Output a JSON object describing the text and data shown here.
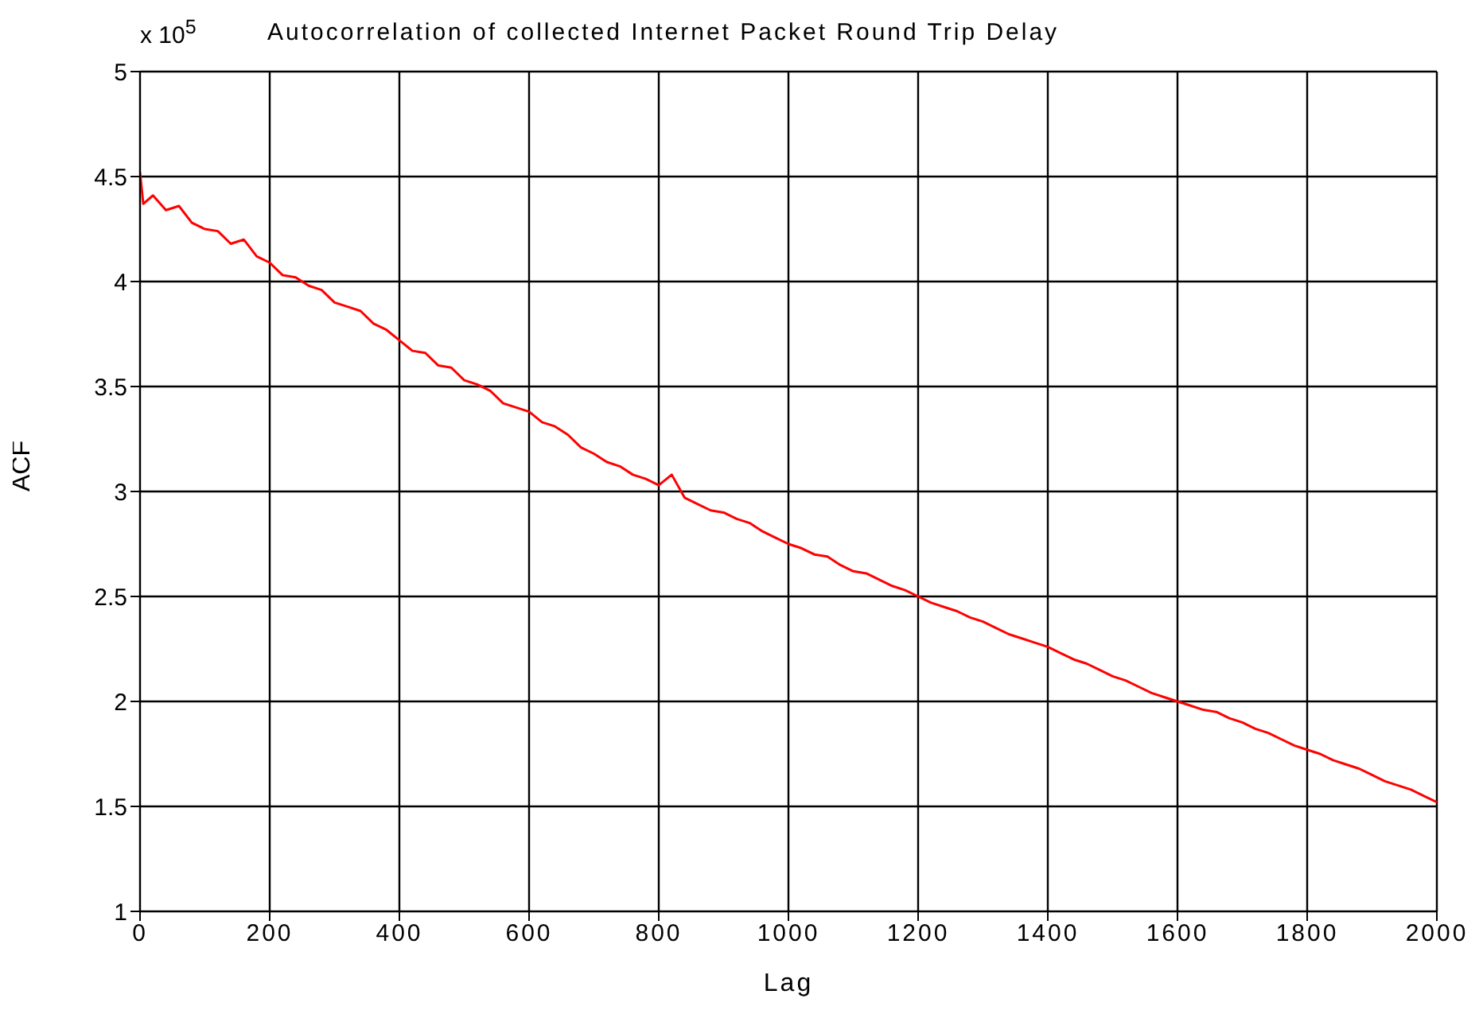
{
  "chart_data": {
    "type": "line",
    "title": "Autocorrelation of collected Internet Packet Round Trip Delay",
    "xlabel": "Lag",
    "ylabel": "ACF",
    "annotations": [
      "x 10$^{5}$"
    ],
    "x": [
      0,
      5,
      20,
      40,
      60,
      80,
      100,
      120,
      140,
      160,
      180,
      200,
      220,
      240,
      260,
      280,
      300,
      320,
      340,
      360,
      380,
      400,
      420,
      440,
      460,
      480,
      500,
      520,
      540,
      560,
      580,
      600,
      620,
      640,
      660,
      680,
      700,
      720,
      740,
      760,
      780,
      800,
      820,
      840,
      860,
      880,
      900,
      920,
      940,
      960,
      980,
      1000,
      1020,
      1040,
      1060,
      1080,
      1100,
      1120,
      1140,
      1160,
      1180,
      1200,
      1220,
      1240,
      1260,
      1280,
      1300,
      1320,
      1340,
      1360,
      1380,
      1400,
      1420,
      1440,
      1460,
      1480,
      1500,
      1520,
      1540,
      1560,
      1580,
      1600,
      1620,
      1640,
      1660,
      1680,
      1700,
      1720,
      1740,
      1760,
      1780,
      1800,
      1820,
      1840,
      1860,
      1880,
      1900,
      1920,
      1940,
      1960,
      1980,
      2000
    ],
    "series": [
      {
        "color": "#ff0000",
        "values": [
          4.52,
          4.37,
          4.41,
          4.34,
          4.36,
          4.28,
          4.25,
          4.24,
          4.18,
          4.2,
          4.12,
          4.09,
          4.03,
          4.02,
          3.98,
          3.96,
          3.9,
          3.88,
          3.86,
          3.8,
          3.77,
          3.72,
          3.67,
          3.66,
          3.6,
          3.59,
          3.53,
          3.51,
          3.48,
          3.42,
          3.4,
          3.38,
          3.33,
          3.31,
          3.27,
          3.21,
          3.18,
          3.14,
          3.12,
          3.08,
          3.06,
          3.03,
          3.08,
          2.97,
          2.94,
          2.91,
          2.9,
          2.87,
          2.85,
          2.81,
          2.78,
          2.75,
          2.73,
          2.7,
          2.69,
          2.65,
          2.62,
          2.61,
          2.58,
          2.55,
          2.53,
          2.5,
          2.47,
          2.45,
          2.43,
          2.4,
          2.38,
          2.35,
          2.32,
          2.3,
          2.28,
          2.26,
          2.23,
          2.2,
          2.18,
          2.15,
          2.12,
          2.1,
          2.07,
          2.04,
          2.02,
          2.0,
          1.98,
          1.96,
          1.95,
          1.92,
          1.9,
          1.87,
          1.85,
          1.82,
          1.79,
          1.77,
          1.75,
          1.72,
          1.7,
          1.68,
          1.65,
          1.62,
          1.6,
          1.58,
          1.55,
          1.52
        ]
      }
    ],
    "xlim": [
      0,
      2000
    ],
    "xticks": [
      0,
      200,
      400,
      600,
      800,
      1000,
      1200,
      1400,
      1600,
      1800,
      2000
    ],
    "ylim": [
      1,
      5
    ],
    "yticks": [
      1,
      1.5,
      2,
      2.5,
      3,
      3.5,
      4,
      4.5,
      5
    ],
    "grid": true,
    "marker": "none",
    "line_style": "solid"
  }
}
